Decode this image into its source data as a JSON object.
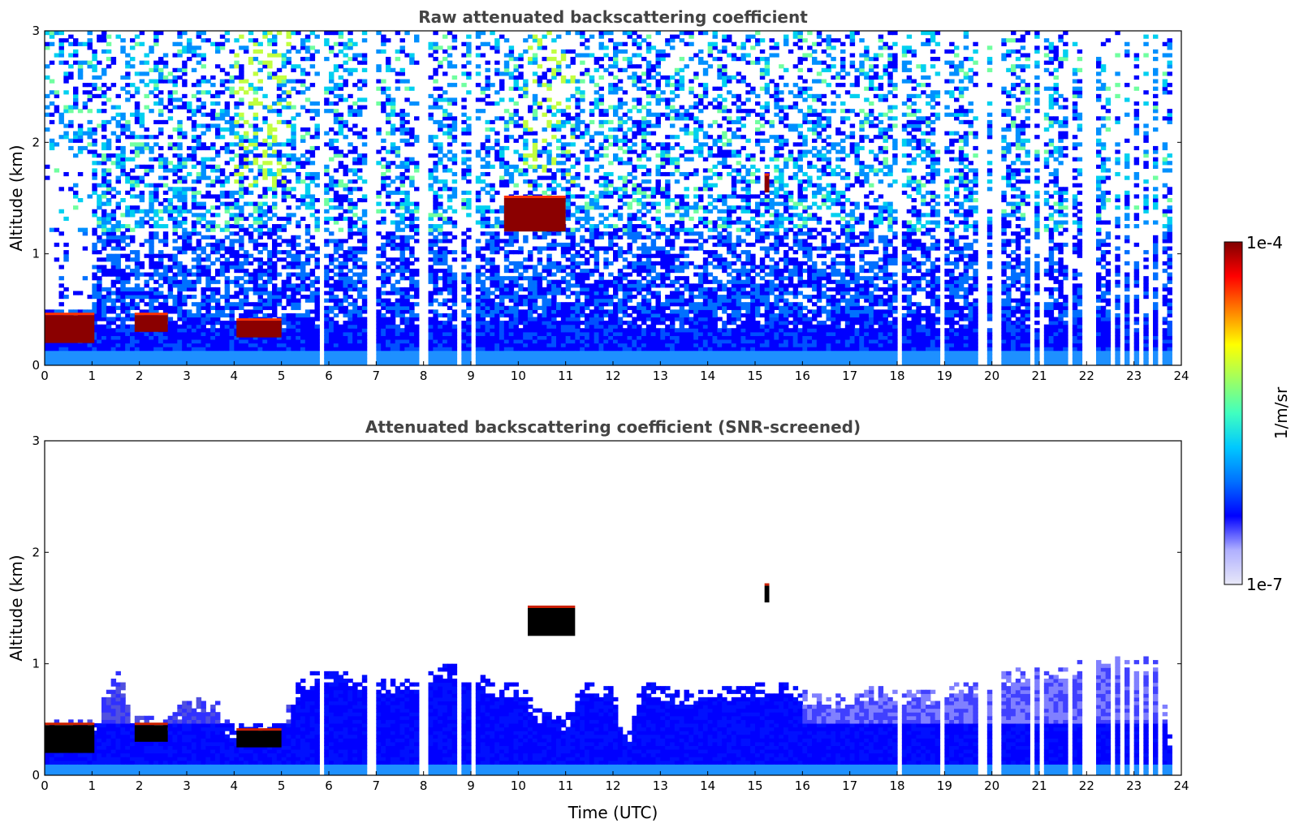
{
  "chart_data": [
    {
      "type": "heatmap",
      "title": "Raw attenuated backscattering coefficient",
      "xlabel": "",
      "ylabel": "Altitude (km)",
      "xlim": [
        0,
        24
      ],
      "ylim": [
        0,
        3
      ],
      "xticks": [
        0,
        1,
        2,
        3,
        4,
        5,
        6,
        7,
        8,
        9,
        10,
        11,
        12,
        13,
        14,
        15,
        16,
        17,
        18,
        19,
        20,
        21,
        22,
        23,
        24
      ],
      "yticks": [
        0,
        1,
        2,
        3
      ],
      "x_gaps_utc": [
        [
          5.85,
          5.88
        ],
        [
          6.85,
          6.92
        ],
        [
          6.95,
          6.99
        ],
        [
          7.95,
          8.08
        ],
        [
          8.72,
          8.85
        ],
        [
          8.98,
          9.08
        ],
        [
          17.88,
          17.91
        ],
        [
          18.05,
          18.08
        ],
        [
          18.92,
          18.99
        ],
        [
          19.1,
          19.14
        ],
        [
          19.75,
          19.88
        ],
        [
          19.97,
          20.09
        ],
        [
          20.15,
          20.25
        ],
        [
          20.78,
          20.88
        ],
        [
          20.98,
          21.1
        ],
        [
          21.62,
          21.72
        ],
        [
          21.78,
          21.82
        ],
        [
          21.92,
          22.07
        ],
        [
          22.12,
          22.25
        ],
        [
          22.48,
          22.58
        ],
        [
          22.72,
          22.78
        ],
        [
          22.88,
          22.98
        ],
        [
          23.1,
          23.22
        ],
        [
          23.32,
          23.42
        ],
        [
          23.52,
          23.62
        ],
        [
          23.7,
          23.72
        ],
        [
          23.78,
          24
        ]
      ],
      "features": [
        {
          "x": [
            0.0,
            1.05
          ],
          "altitude_km": [
            0.2,
            0.45
          ],
          "level": "high"
        },
        {
          "x": [
            1.9,
            2.6
          ],
          "altitude_km": [
            0.3,
            0.45
          ],
          "level": "high"
        },
        {
          "x": [
            4.05,
            5.0
          ],
          "altitude_km": [
            0.25,
            0.4
          ],
          "level": "high"
        },
        {
          "x": [
            9.7,
            11.0
          ],
          "altitude_km": [
            1.2,
            1.5
          ],
          "level": "high"
        },
        {
          "x": [
            15.2,
            15.3
          ],
          "altitude_km": [
            1.55,
            1.7
          ],
          "level": "high"
        }
      ]
    },
    {
      "type": "heatmap",
      "title": "Attenuated backscattering coefficient (SNR-screened)",
      "xlabel": "Time (UTC)",
      "ylabel": "Altitude (km)",
      "xlim": [
        0,
        24
      ],
      "ylim": [
        0,
        3
      ],
      "xticks": [
        0,
        1,
        2,
        3,
        4,
        5,
        6,
        7,
        8,
        9,
        10,
        11,
        12,
        13,
        14,
        15,
        16,
        17,
        18,
        19,
        20,
        21,
        22,
        23,
        24
      ],
      "yticks": [
        0,
        1,
        2,
        3
      ],
      "top_of_signal_km": [
        [
          0,
          0.5
        ],
        [
          1.1,
          0.5
        ],
        [
          1.3,
          0.8
        ],
        [
          1.6,
          0.95
        ],
        [
          1.8,
          0.55
        ],
        [
          2.6,
          0.5
        ],
        [
          3.0,
          0.7
        ],
        [
          3.6,
          0.7
        ],
        [
          3.9,
          0.45
        ],
        [
          5.0,
          0.45
        ],
        [
          5.3,
          0.8
        ],
        [
          5.7,
          0.95
        ],
        [
          6.3,
          0.95
        ],
        [
          7.0,
          0.85
        ],
        [
          8.0,
          0.9
        ],
        [
          8.5,
          1.0
        ],
        [
          9.0,
          0.95
        ],
        [
          9.6,
          0.8
        ],
        [
          10.0,
          0.85
        ],
        [
          10.4,
          0.6
        ],
        [
          11.0,
          0.5
        ],
        [
          11.3,
          0.85
        ],
        [
          12.0,
          0.8
        ],
        [
          12.3,
          0.3
        ],
        [
          12.6,
          0.85
        ],
        [
          13.5,
          0.75
        ],
        [
          14.5,
          0.8
        ],
        [
          15.5,
          0.85
        ],
        [
          16.5,
          0.7
        ],
        [
          17.5,
          0.8
        ],
        [
          18.5,
          0.75
        ],
        [
          19.5,
          0.85
        ],
        [
          20.5,
          0.95
        ],
        [
          21.5,
          1.0
        ],
        [
          22.5,
          1.05
        ],
        [
          23.5,
          1.05
        ],
        [
          23.75,
          0.35
        ]
      ],
      "features": [
        {
          "x": [
            0.0,
            1.05
          ],
          "altitude_km": [
            0.2,
            0.45
          ],
          "level": "saturated"
        },
        {
          "x": [
            1.9,
            2.6
          ],
          "altitude_km": [
            0.3,
            0.45
          ],
          "level": "saturated"
        },
        {
          "x": [
            4.05,
            5.0
          ],
          "altitude_km": [
            0.25,
            0.4
          ],
          "level": "saturated"
        },
        {
          "x": [
            10.2,
            11.2
          ],
          "altitude_km": [
            1.25,
            1.5
          ],
          "level": "saturated"
        },
        {
          "x": [
            15.2,
            15.3
          ],
          "altitude_km": [
            1.55,
            1.7
          ],
          "level": "saturated"
        }
      ]
    }
  ],
  "colorbar": {
    "label": "1/m/sr",
    "max_label": "1e-4",
    "min_label": "1e-7",
    "scale": "log",
    "colormap": "jet",
    "colors": [
      "#e8e8f8",
      "#b0b0ff",
      "#0000ff",
      "#0070ff",
      "#00c8ff",
      "#40ffc0",
      "#a0ff60",
      "#ffff00",
      "#ff8000",
      "#ff0000",
      "#800000"
    ]
  }
}
